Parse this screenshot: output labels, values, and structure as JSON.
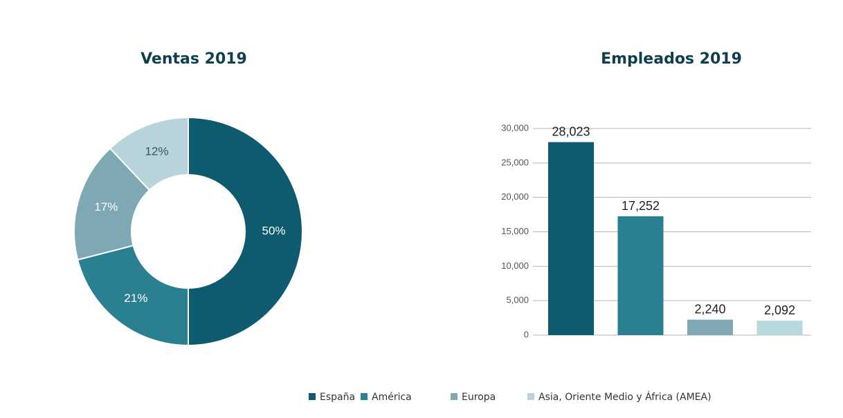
{
  "chart_data": [
    {
      "type": "pie",
      "title": "Ventas 2019",
      "categories": [
        "España",
        "América",
        "Europa",
        "Asia, Oriente Medio y África (AMEA)"
      ],
      "values": [
        50,
        21,
        17,
        12
      ],
      "value_labels": [
        "50%",
        "21%",
        "17%",
        "12%"
      ],
      "colors": [
        "#0e5a6e",
        "#2a7f91",
        "#7fa8b5",
        "#b8d3d9"
      ],
      "donut": true,
      "legend": "bottom"
    },
    {
      "type": "bar",
      "title": "Empleados 2019",
      "values": [
        28023,
        17252,
        2240,
        2092
      ],
      "value_labels": [
        "28,023",
        "17,252",
        "2,240",
        "2,092"
      ],
      "colors": [
        "#0e5a6e",
        "#2a7f91",
        "#7fa8b5",
        "#b8d9dd"
      ],
      "ylim": [
        0,
        30000
      ],
      "yticks": [
        0,
        {
          "value": 5000,
          "label": "5,000"
        },
        {
          "value": 10000,
          "label": "10,000"
        },
        {
          "value": 15000,
          "label": "15,000"
        },
        {
          "value": 20000,
          "label": "20,000"
        },
        {
          "value": 25000,
          "label": "25,000"
        },
        {
          "value": 30000,
          "label": "30,000"
        }
      ],
      "grid": true
    }
  ]
}
